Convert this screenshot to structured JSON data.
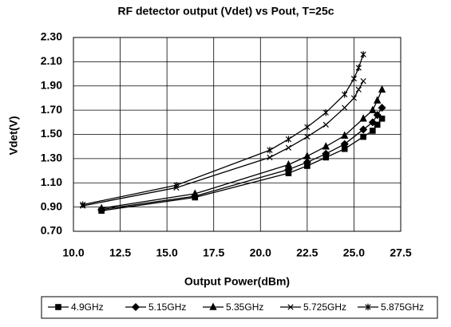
{
  "chart_data": {
    "type": "line",
    "title": "RF detector output (Vdet) vs Pout, T=25c",
    "x_label": "Output Power(dBm)",
    "y_label": "Vdet(V)",
    "xlim": [
      10,
      27.5
    ],
    "xticks": [
      {
        "value": 10,
        "label": "10.0"
      },
      12.5,
      {
        "value": 15,
        "label": "15.0"
      },
      17.5,
      {
        "value": 20,
        "label": "20.0"
      },
      22.5,
      {
        "value": 25,
        "label": "25.0"
      },
      27.5
    ],
    "ylim": [
      0.7,
      2.3
    ],
    "yticks": [
      {
        "value": 0.7,
        "label": "0.70"
      },
      {
        "value": 0.9,
        "label": "0.90"
      },
      {
        "value": 1.1,
        "label": "1.10"
      },
      {
        "value": 1.3,
        "label": "1.30"
      },
      {
        "value": 1.5,
        "label": "1.50"
      },
      {
        "value": 1.7,
        "label": "1.70"
      },
      {
        "value": 1.9,
        "label": "1.90"
      },
      {
        "value": 2.1,
        "label": "2.10"
      },
      {
        "value": 2.3,
        "label": "2.30"
      }
    ],
    "grid": true,
    "legend": "bottom",
    "series": [
      {
        "name": "4.9GHz",
        "color": "#000000",
        "marker": "square",
        "x": [
          11.5,
          16.5,
          21.5,
          22.5,
          23.5,
          24.5,
          25.5,
          26,
          26.25,
          26.5
        ],
        "values": [
          0.87,
          0.98,
          1.18,
          1.24,
          1.31,
          1.38,
          1.48,
          1.53,
          1.58,
          1.63
        ]
      },
      {
        "name": "5.15GHz",
        "color": "#000000",
        "marker": "diamond",
        "x": [
          11.5,
          16.5,
          21.5,
          22.5,
          23.5,
          24.5,
          25.5,
          26,
          26.25,
          26.5
        ],
        "values": [
          0.88,
          0.99,
          1.21,
          1.27,
          1.34,
          1.42,
          1.54,
          1.6,
          1.66,
          1.72
        ]
      },
      {
        "name": "5.35GHz",
        "color": "#000000",
        "marker": "triangle",
        "x": [
          11.5,
          16.5,
          21.5,
          22.5,
          23.5,
          24.5,
          25.5,
          26,
          26.25,
          26.5
        ],
        "values": [
          0.89,
          1.01,
          1.25,
          1.32,
          1.4,
          1.49,
          1.63,
          1.7,
          1.78,
          1.87
        ]
      },
      {
        "name": "5.725GHz",
        "color": "#000000",
        "marker": "x",
        "x": [
          10.5,
          15.5,
          20.5,
          21.5,
          22.5,
          23.5,
          24.5,
          25,
          25.25,
          25.5
        ],
        "values": [
          0.91,
          1.06,
          1.31,
          1.39,
          1.48,
          1.58,
          1.72,
          1.8,
          1.87,
          1.94
        ]
      },
      {
        "name": "5.875GHz",
        "color": "#000000",
        "marker": "star",
        "x": [
          10.5,
          15.5,
          20.5,
          21.5,
          22.5,
          23.5,
          24.5,
          25,
          25.25,
          25.5
        ],
        "values": [
          0.92,
          1.08,
          1.37,
          1.46,
          1.56,
          1.68,
          1.83,
          1.96,
          2.05,
          2.16
        ]
      }
    ]
  }
}
